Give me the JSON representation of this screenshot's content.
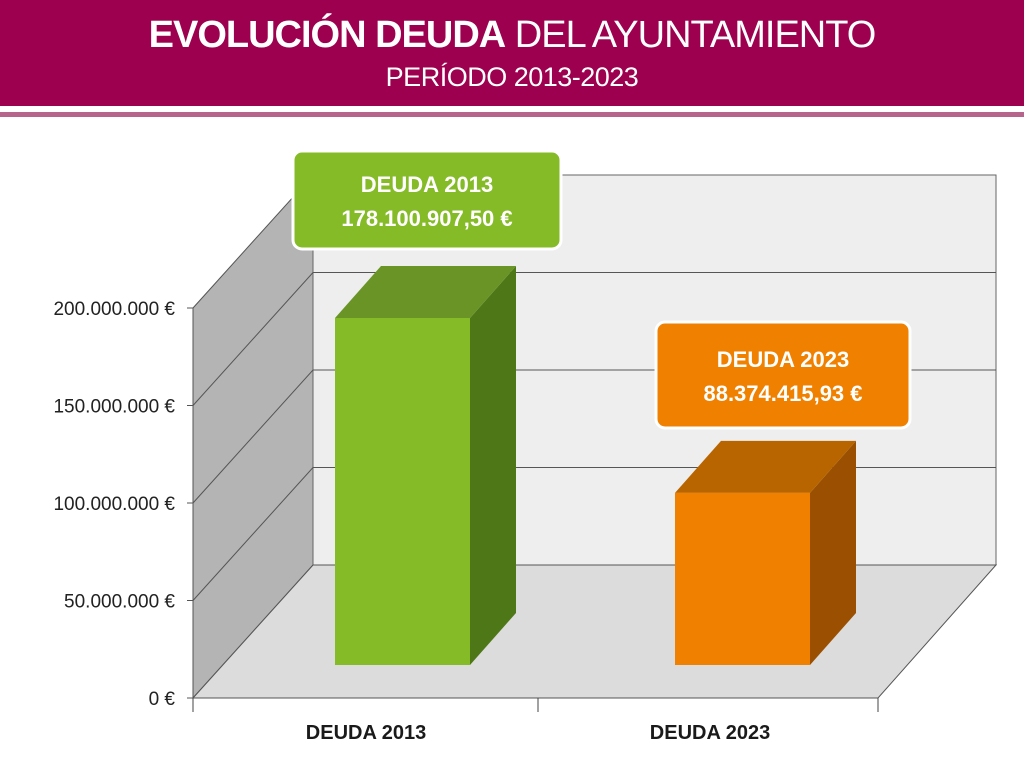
{
  "header": {
    "title_bold": "EVOLUCIÓN DEUDA",
    "title_light": "DEL AYUNTAMIENTO",
    "subtitle": "PERÍODO 2013-2023",
    "color": "#9c004f"
  },
  "chart_data": {
    "type": "bar",
    "style": "3d",
    "categories": [
      "DEUDA 2013",
      "DEUDA 2023"
    ],
    "values": [
      178100907.5,
      88374415.93
    ],
    "colors": [
      "#86bb28",
      "#f08000"
    ],
    "data_labels": [
      {
        "line1": "DEUDA 2013",
        "line2": "178.100.907,50 €"
      },
      {
        "line1": "DEUDA 2023",
        "line2": "88.374.415,93 €"
      }
    ],
    "ylim": [
      0,
      200000000
    ],
    "yticks": [
      0,
      50000000,
      100000000,
      150000000,
      200000000
    ],
    "ytick_labels": [
      "0 €",
      "50.000.000 €",
      "100.000.000 €",
      "150.000.000 €",
      "200.000.000 €"
    ],
    "grid": true,
    "legend": "none"
  }
}
